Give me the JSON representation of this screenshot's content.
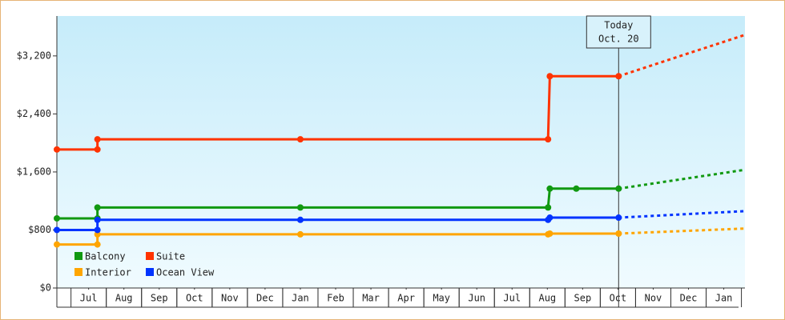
{
  "chart_data": {
    "type": "line",
    "step": true,
    "xlim": [
      0.1,
      19.6
    ],
    "xticks": [
      {
        "value": 1,
        "label": "Jul"
      },
      {
        "value": 2,
        "label": "Aug"
      },
      {
        "value": 3,
        "label": "Sep"
      },
      {
        "value": 4,
        "label": "Oct"
      },
      {
        "value": 5,
        "label": "Nov"
      },
      {
        "value": 6,
        "label": "Dec"
      },
      {
        "value": 7,
        "label": "Jan"
      },
      {
        "value": 8,
        "label": "Feb"
      },
      {
        "value": 9,
        "label": "Mar"
      },
      {
        "value": 10,
        "label": "Apr"
      },
      {
        "value": 11,
        "label": "May"
      },
      {
        "value": 12,
        "label": "Jun"
      },
      {
        "value": 13,
        "label": "Jul"
      },
      {
        "value": 14,
        "label": "Aug"
      },
      {
        "value": 15,
        "label": "Sep"
      },
      {
        "value": 16,
        "label": "Oct"
      },
      {
        "value": 17,
        "label": "Nov"
      },
      {
        "value": 18,
        "label": "Dec"
      },
      {
        "value": 19,
        "label": "Jan"
      }
    ],
    "ylim": [
      0,
      3750
    ],
    "yticks": [
      {
        "value": 0,
        "label": "$0"
      },
      {
        "value": 800,
        "label": "$800"
      },
      {
        "value": 1600,
        "label": "$1,600"
      },
      {
        "value": 2400,
        "label": "$2,400"
      },
      {
        "value": 3200,
        "label": "$3,200"
      }
    ],
    "series": [
      {
        "name": "Balcony",
        "color": "#119911",
        "x": [
          0.1,
          1.25,
          1.25,
          7.0,
          14.02,
          14.07,
          14.82,
          16.02
        ],
        "values": [
          960,
          960,
          1110,
          1110,
          1110,
          1370,
          1370,
          1370
        ],
        "projection": {
          "x": [
            16.02,
            19.6
          ],
          "values": [
            1370,
            1630
          ]
        }
      },
      {
        "name": "Suite",
        "color": "#ff3300",
        "x": [
          0.1,
          1.25,
          1.25,
          7.0,
          14.02,
          14.07,
          16.02
        ],
        "values": [
          1910,
          1910,
          2050,
          2050,
          2050,
          2920,
          2920
        ],
        "projection": {
          "x": [
            16.02,
            19.6
          ],
          "values": [
            2920,
            3490
          ]
        }
      },
      {
        "name": "Interior",
        "color": "#ffa500",
        "x": [
          0.1,
          1.25,
          1.25,
          7.0,
          14.02,
          14.07,
          16.02
        ],
        "values": [
          600,
          600,
          740,
          740,
          740,
          750,
          750
        ],
        "projection": {
          "x": [
            16.02,
            19.6
          ],
          "values": [
            750,
            820
          ]
        }
      },
      {
        "name": "Ocean View",
        "color": "#0033ff",
        "x": [
          0.1,
          1.25,
          1.25,
          7.0,
          14.02,
          14.07,
          16.02
        ],
        "values": [
          800,
          800,
          940,
          940,
          940,
          970,
          970
        ],
        "projection": {
          "x": [
            16.02,
            19.6
          ],
          "values": [
            970,
            1060
          ]
        }
      }
    ],
    "annotation": {
      "x": 16.02,
      "label": "Today",
      "date": "Oct. 20"
    },
    "legend": "lower-left"
  }
}
